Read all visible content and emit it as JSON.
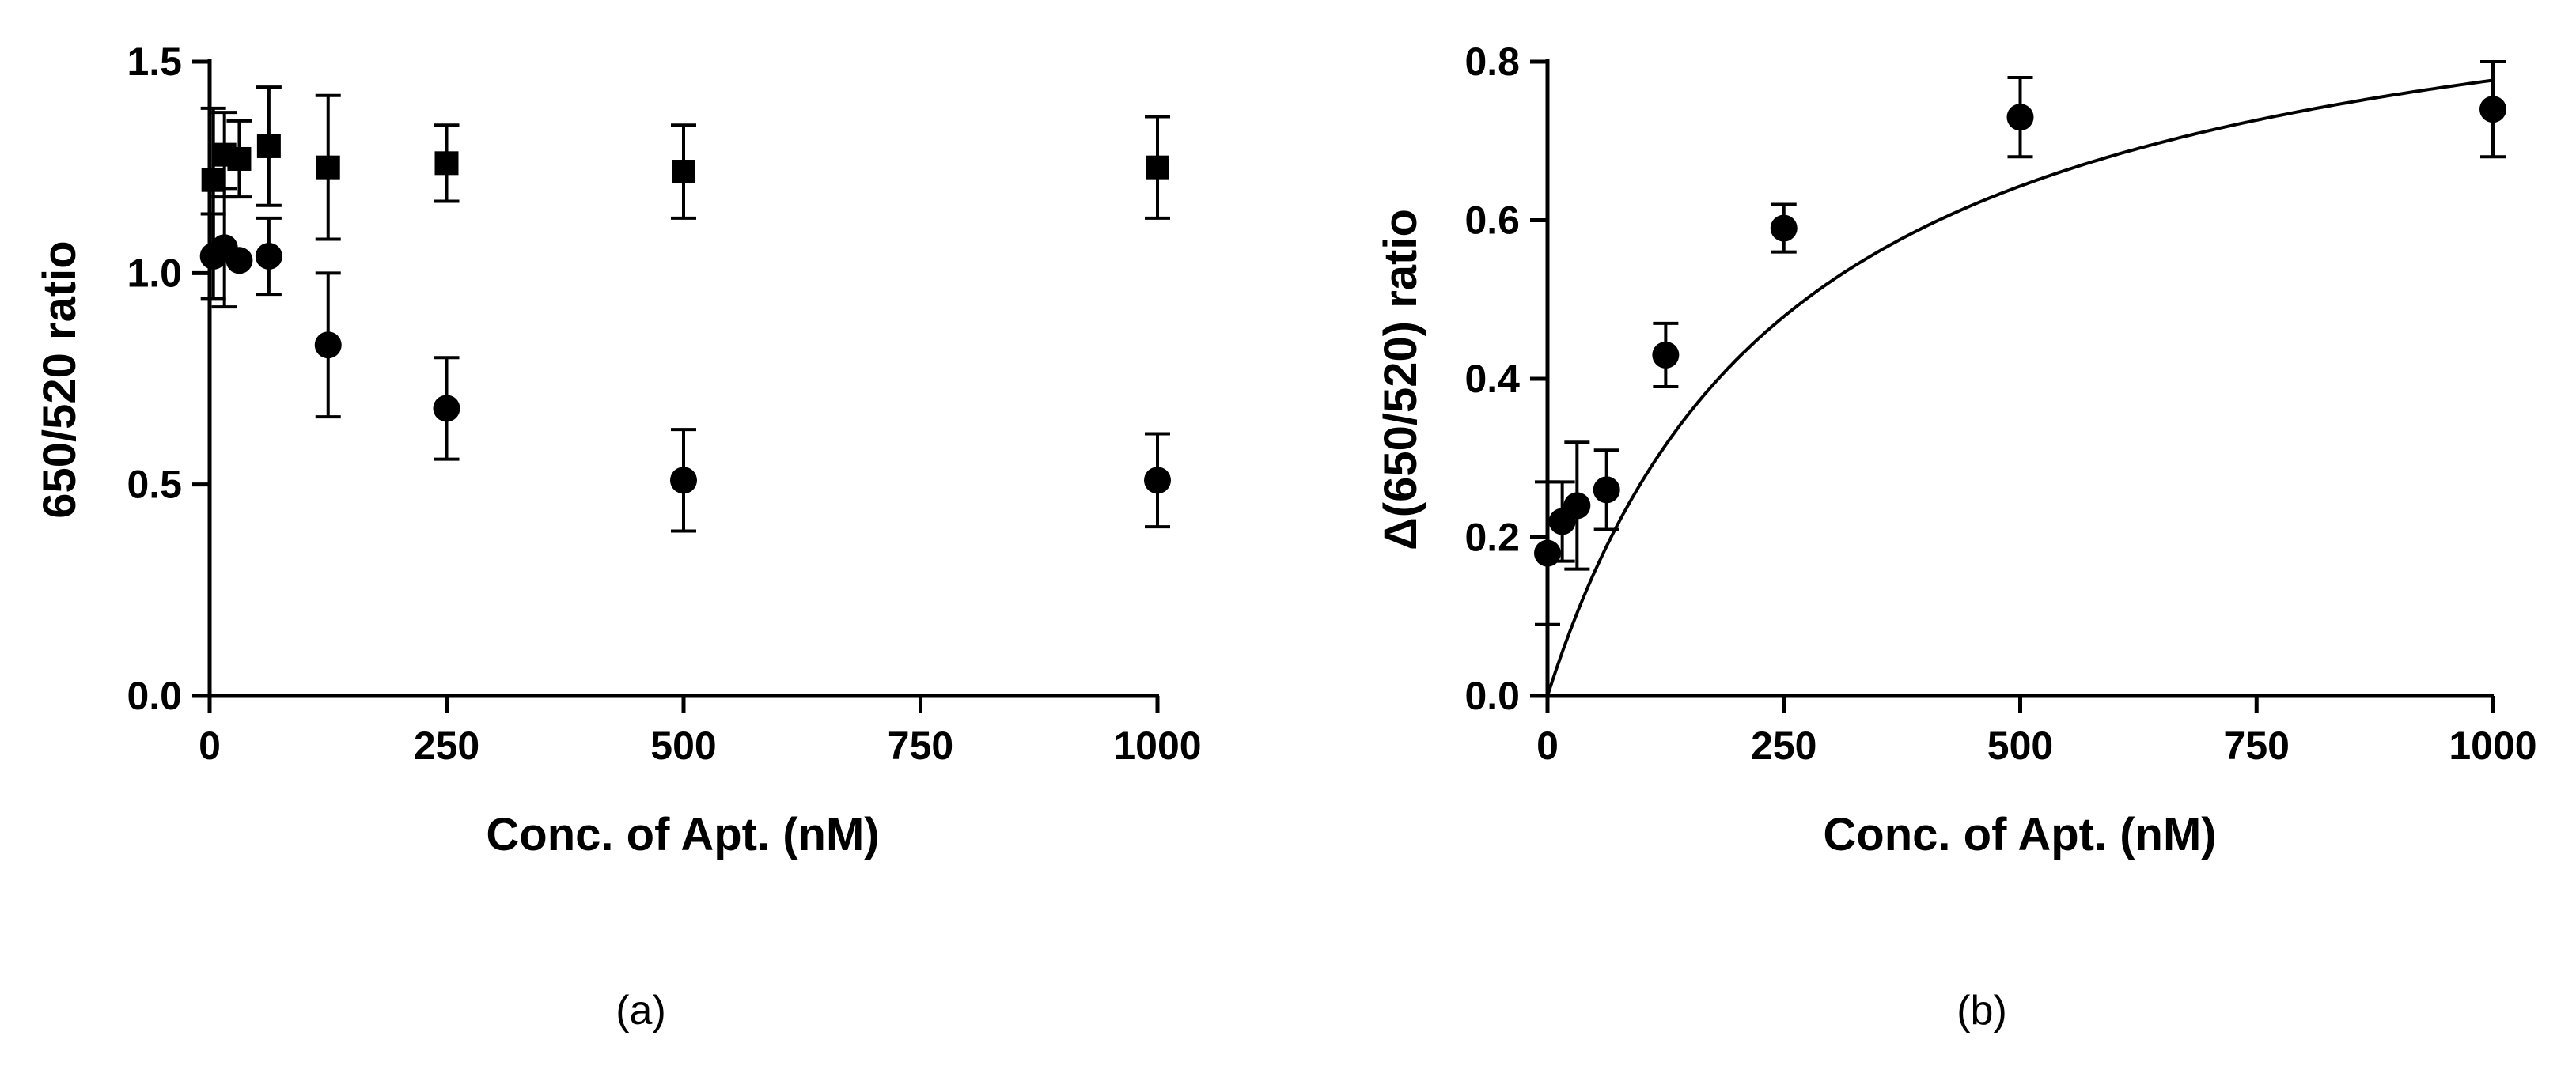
{
  "colors": {
    "ink": "#000000",
    "background": "#ffffff"
  },
  "chart_data": [
    {
      "type": "scatter",
      "panel_label": "(a)",
      "title": "",
      "xlabel": "Conc. of Apt. (nM)",
      "ylabel": "650/520 ratio",
      "xlim": [
        0,
        1000
      ],
      "ylim": [
        0,
        1.5
      ],
      "xticks": [
        "0",
        "250",
        "500",
        "750",
        "1000"
      ],
      "yticks": [
        "0.0",
        "0.5",
        "1.0",
        "1.5"
      ],
      "grid": false,
      "legend": "none",
      "series": [
        {
          "marker": "square",
          "x": [
            3.9,
            15.6,
            31.25,
            62.5,
            125,
            250,
            500,
            1000
          ],
          "y": [
            1.22,
            1.28,
            1.27,
            1.3,
            1.25,
            1.26,
            1.24,
            1.25
          ],
          "err": [
            0.17,
            0.1,
            0.09,
            0.14,
            0.17,
            0.09,
            0.11,
            0.12
          ]
        },
        {
          "marker": "circle",
          "x": [
            3.9,
            15.6,
            31.25,
            62.5,
            125,
            250,
            500,
            1000
          ],
          "y": [
            1.04,
            1.06,
            1.03,
            1.04,
            0.83,
            0.68,
            0.51,
            0.51
          ],
          "err": [
            0.1,
            0.14,
            0.0,
            0.09,
            0.17,
            0.12,
            0.12,
            0.11
          ]
        }
      ]
    },
    {
      "type": "scatter",
      "panel_label": "(b)",
      "title": "",
      "xlabel": "Conc. of Apt. (nM)",
      "ylabel": "Δ(650/520) ratio",
      "xlim": [
        0,
        1000
      ],
      "ylim": [
        0,
        0.8
      ],
      "xticks": [
        "0",
        "250",
        "500",
        "750",
        "1000"
      ],
      "yticks": [
        "0.0",
        "0.2",
        "0.4",
        "0.6",
        "0.8"
      ],
      "grid": false,
      "legend": "none",
      "series": [
        {
          "marker": "circle",
          "x": [
            0,
            15.6,
            31.25,
            62.5,
            125,
            250,
            500,
            1000
          ],
          "y": [
            0.18,
            0.22,
            0.24,
            0.26,
            0.43,
            0.59,
            0.73,
            0.74
          ],
          "err": [
            0.09,
            0.05,
            0.08,
            0.05,
            0.04,
            0.03,
            0.05,
            0.06
          ]
        }
      ],
      "fit": {
        "model": "y = y0 + Bmax*x/(Kd + x)",
        "y0": 0.0,
        "Bmax": 0.98,
        "Kd": 262
      }
    }
  ]
}
